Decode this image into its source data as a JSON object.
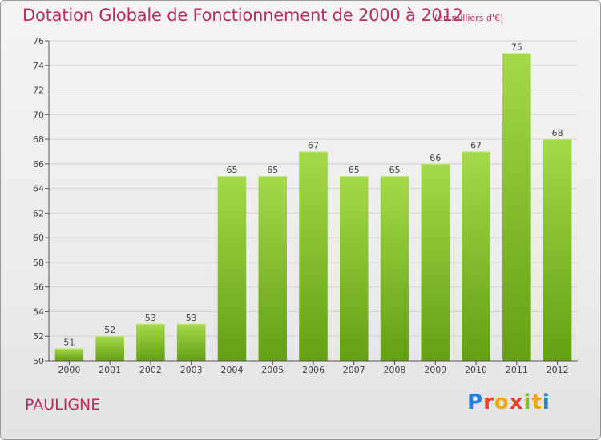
{
  "header": {
    "title": "Dotation Globale de Fonctionnement de 2000 à 2012",
    "unit_note": "(en milliers d'€)"
  },
  "footer": {
    "commune": "PAULIGNE",
    "brand": "Proxiti"
  },
  "colors": {
    "title": "#b5305a",
    "bar_light": "#a4d94a",
    "bar_dark": "#63a012",
    "axis": "#555555",
    "logo": [
      "#2f7fd0",
      "#e8412c",
      "#f2a51a",
      "#e8412c",
      "#7fbf2a",
      "#f2a51a",
      "#2f7fd0"
    ]
  },
  "chart_data": {
    "type": "bar",
    "categories": [
      "2000",
      "2001",
      "2002",
      "2003",
      "2004",
      "2005",
      "2006",
      "2007",
      "2008",
      "2009",
      "2010",
      "2011",
      "2012"
    ],
    "values": [
      51,
      52,
      53,
      53,
      65,
      65,
      67,
      65,
      65,
      66,
      67,
      75,
      68
    ],
    "ylim": [
      50,
      76
    ],
    "yticks": [
      50,
      52,
      54,
      56,
      58,
      60,
      62,
      64,
      66,
      68,
      70,
      72,
      74,
      76
    ],
    "grid": true,
    "legend": "none"
  }
}
